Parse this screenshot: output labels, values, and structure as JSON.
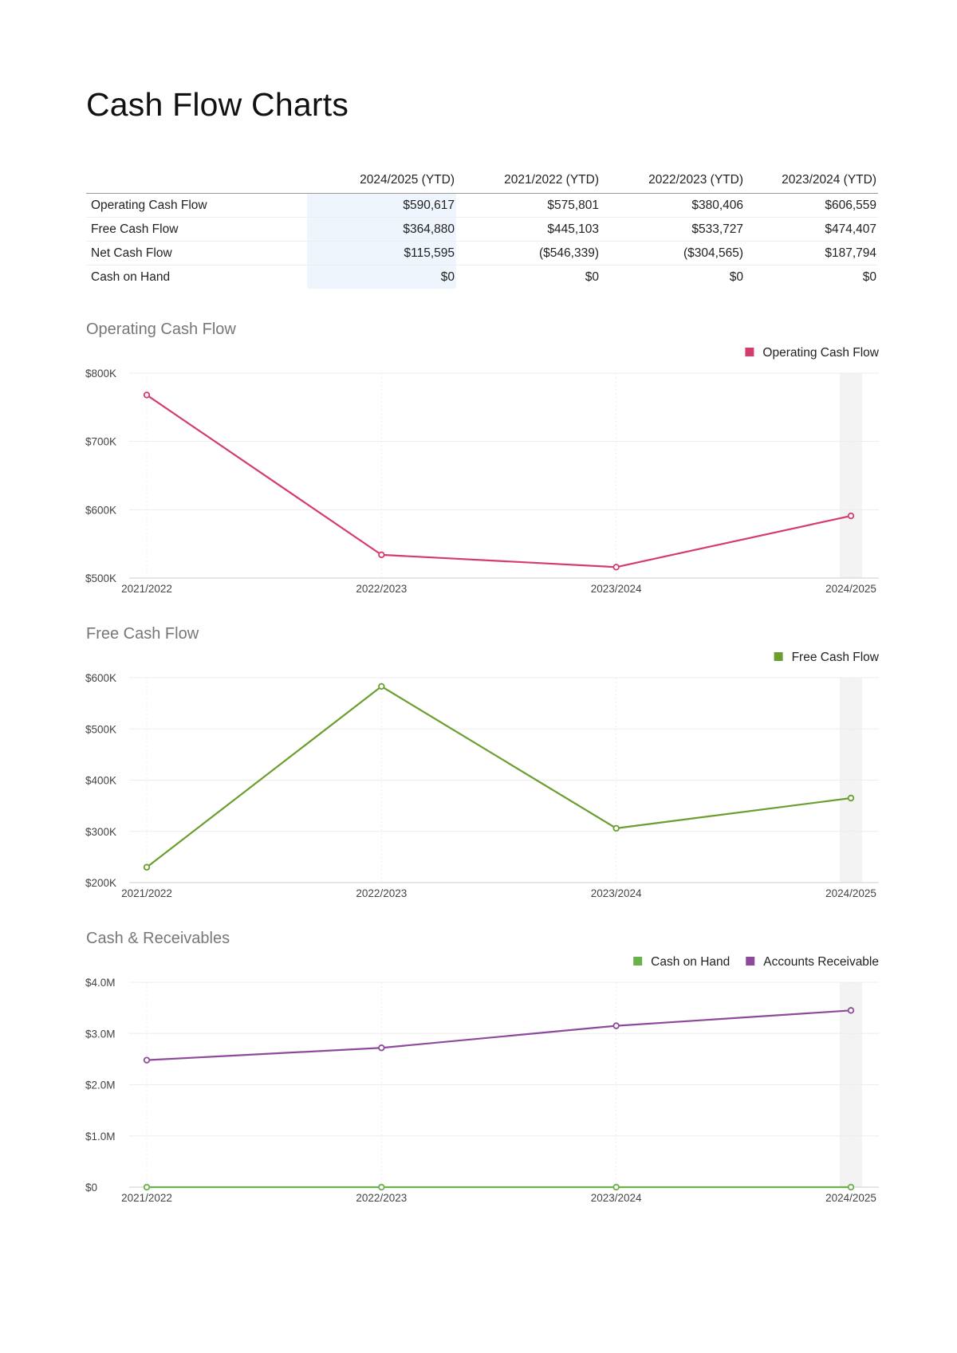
{
  "page": {
    "title": "Cash Flow Charts"
  },
  "table": {
    "columns": [
      "2024/2025 (YTD)",
      "2021/2022 (YTD)",
      "2022/2023 (YTD)",
      "2023/2024 (YTD)"
    ],
    "rows": [
      {
        "label": "Operating Cash Flow",
        "values": [
          "$590,617",
          "$575,801",
          "$380,406",
          "$606,559"
        ]
      },
      {
        "label": "Free Cash Flow",
        "values": [
          "$364,880",
          "$445,103",
          "$533,727",
          "$474,407"
        ]
      },
      {
        "label": "Net Cash Flow",
        "values": [
          "$115,595",
          "($546,339)",
          "($304,565)",
          "$187,794"
        ]
      },
      {
        "label": "Cash on Hand",
        "values": [
          "$0",
          "$0",
          "$0",
          "$0"
        ]
      }
    ]
  },
  "chart_data": [
    {
      "type": "line",
      "title": "Operating Cash Flow",
      "categories": [
        "2021/2022",
        "2022/2023",
        "2023/2024",
        "2024/2025"
      ],
      "ylim": [
        500000,
        800000
      ],
      "yticks": [
        500000,
        600000,
        700000,
        800000
      ],
      "ytick_labels": [
        "$500K",
        "$600K",
        "$700K",
        "$800K"
      ],
      "legend_position": "top-right",
      "grid": true,
      "highlight_category": "2024/2025",
      "series": [
        {
          "name": "Operating Cash Flow",
          "color": "#d63c6b",
          "values": [
            768000,
            534000,
            516000,
            591000
          ]
        }
      ]
    },
    {
      "type": "line",
      "title": "Free Cash Flow",
      "categories": [
        "2021/2022",
        "2022/2023",
        "2023/2024",
        "2024/2025"
      ],
      "ylim": [
        200000,
        600000
      ],
      "yticks": [
        200000,
        300000,
        400000,
        500000,
        600000
      ],
      "ytick_labels": [
        "$200K",
        "$300K",
        "$400K",
        "$500K",
        "$600K"
      ],
      "legend_position": "top-right",
      "grid": true,
      "highlight_category": "2024/2025",
      "series": [
        {
          "name": "Free Cash Flow",
          "color": "#6a9e2e",
          "values": [
            230000,
            583000,
            306000,
            365000
          ]
        }
      ]
    },
    {
      "type": "line",
      "title": "Cash & Receivables",
      "categories": [
        "2021/2022",
        "2022/2023",
        "2023/2024",
        "2024/2025"
      ],
      "ylim": [
        0,
        4000000
      ],
      "yticks": [
        0,
        1000000,
        2000000,
        3000000,
        4000000
      ],
      "ytick_labels": [
        "$0",
        "$1.0M",
        "$2.0M",
        "$3.0M",
        "$4.0M"
      ],
      "legend_position": "top-right",
      "grid": true,
      "highlight_category": "2024/2025",
      "series": [
        {
          "name": "Cash on Hand",
          "color": "#6ab04c",
          "values": [
            0,
            0,
            0,
            0
          ]
        },
        {
          "name": "Accounts Receivable",
          "color": "#8e4a9a",
          "values": [
            2480000,
            2720000,
            3150000,
            3450000
          ]
        }
      ]
    }
  ]
}
